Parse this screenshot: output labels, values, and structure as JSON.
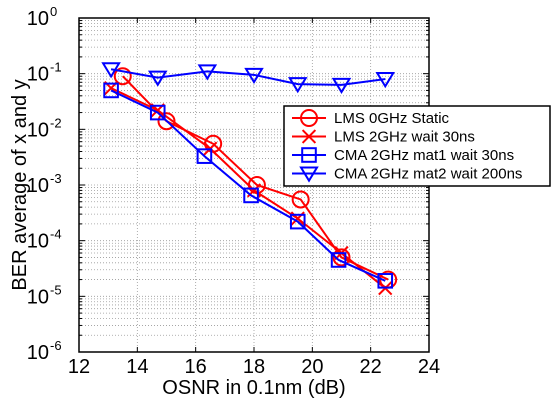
{
  "chart_data": {
    "type": "line",
    "title": "",
    "xlabel": "OSNR in 0.1nm (dB)",
    "ylabel": "BER average of x and y",
    "xlim": [
      12,
      24
    ],
    "ylim_log10": [
      -6,
      0
    ],
    "y_scale": "log",
    "grid": true,
    "xticks": [
      12,
      14,
      16,
      18,
      20,
      22,
      24
    ],
    "yticks": [
      {
        "base": "10",
        "exp": "0"
      },
      {
        "base": "10",
        "exp": "-1"
      },
      {
        "base": "10",
        "exp": "-2"
      },
      {
        "base": "10",
        "exp": "-3"
      },
      {
        "base": "10",
        "exp": "-4"
      },
      {
        "base": "10",
        "exp": "-5"
      },
      {
        "base": "10",
        "exp": "-6"
      }
    ],
    "legend_position": "right",
    "series": [
      {
        "name": "LMS 0GHz Static",
        "color": "#ff0000",
        "marker": "circle",
        "x": [
          13.5,
          15.0,
          16.6,
          18.1,
          19.6,
          21.0,
          22.6
        ],
        "y": [
          0.09,
          0.014,
          0.0055,
          0.001,
          0.00055,
          5e-05,
          2e-05
        ]
      },
      {
        "name": "LMS 2GHz wait 30ns",
        "color": "#ff0000",
        "marker": "x",
        "x": [
          13.1,
          14.7,
          16.5,
          18.0,
          19.5,
          21.0,
          22.5
        ],
        "y": [
          0.055,
          0.022,
          0.0045,
          0.0008,
          0.00025,
          6e-05,
          1.4e-05
        ]
      },
      {
        "name": "CMA 2GHz mat1 wait 30ns",
        "color": "#0000ff",
        "marker": "square",
        "x": [
          13.1,
          14.7,
          16.3,
          17.9,
          19.5,
          20.9,
          22.5
        ],
        "y": [
          0.05,
          0.02,
          0.0033,
          0.00065,
          0.00022,
          4.5e-05,
          1.9e-05
        ]
      },
      {
        "name": "CMA 2GHz mat2 wait 200ns",
        "color": "#0000ff",
        "marker": "triangle-down",
        "x": [
          13.1,
          14.7,
          16.4,
          18.0,
          19.5,
          21.0,
          22.5
        ],
        "y": [
          0.12,
          0.085,
          0.11,
          0.095,
          0.065,
          0.063,
          0.08
        ]
      }
    ]
  }
}
